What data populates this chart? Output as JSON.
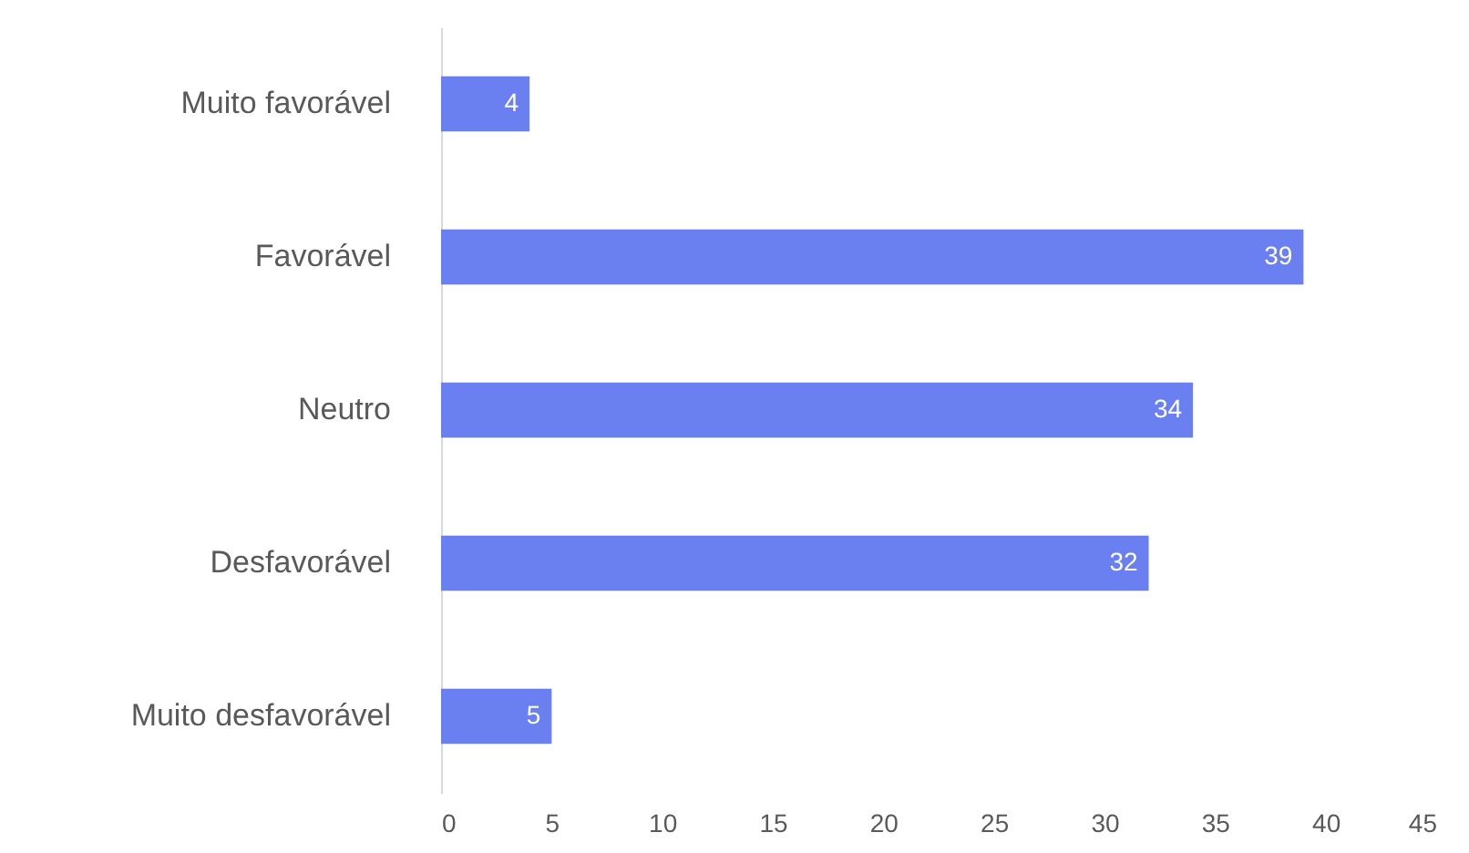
{
  "chart_data": {
    "type": "bar",
    "orientation": "horizontal",
    "categories": [
      "Muito favorável",
      "Favorável",
      "Neutro",
      "Desfavorável",
      "Muito desfavorável"
    ],
    "values": [
      4,
      39,
      34,
      32,
      5
    ],
    "color": "#6a7ff0",
    "xlim": [
      0,
      45
    ],
    "xticks": [
      0,
      5,
      10,
      15,
      20,
      25,
      30,
      35,
      40,
      45
    ],
    "data_labels": true
  }
}
